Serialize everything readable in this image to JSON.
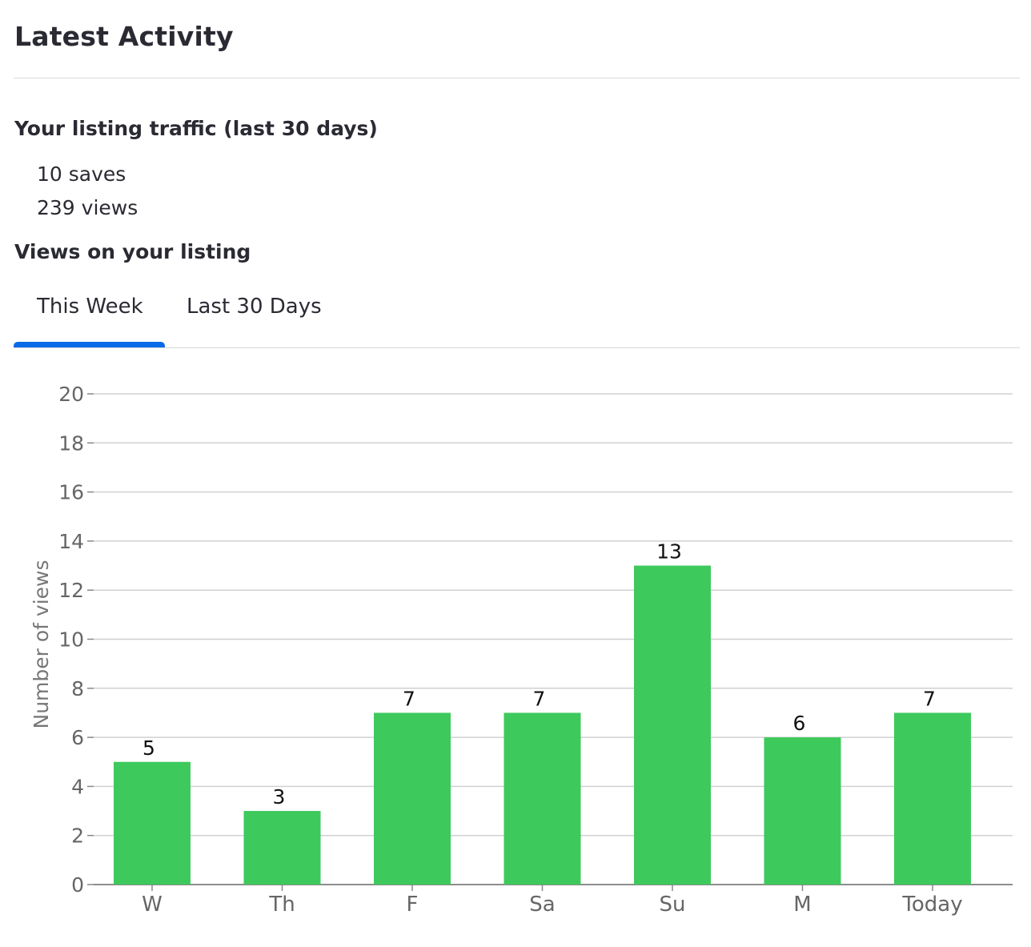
{
  "header": {
    "title": "Latest Activity"
  },
  "traffic": {
    "title": "Your listing traffic (last 30 days)",
    "saves": "10 saves",
    "views": "239 views"
  },
  "views_section": {
    "title": "Views on your listing",
    "tabs": [
      {
        "label": "This Week",
        "active": true
      },
      {
        "label": "Last 30 Days",
        "active": false
      }
    ]
  },
  "colors": {
    "bar": "#3ec95c",
    "tab_active": "#0a6be8"
  },
  "chart_data": {
    "type": "bar",
    "categories": [
      "W",
      "Th",
      "F",
      "Sa",
      "Su",
      "M",
      "Today"
    ],
    "values": [
      5,
      3,
      7,
      7,
      13,
      6,
      7
    ],
    "title": "",
    "xlabel": "",
    "ylabel": "Number of views",
    "ylim": [
      0,
      20
    ],
    "yticks": [
      0,
      2,
      4,
      6,
      8,
      10,
      12,
      14,
      16,
      18,
      20
    ],
    "grid": true,
    "data_labels": true
  }
}
